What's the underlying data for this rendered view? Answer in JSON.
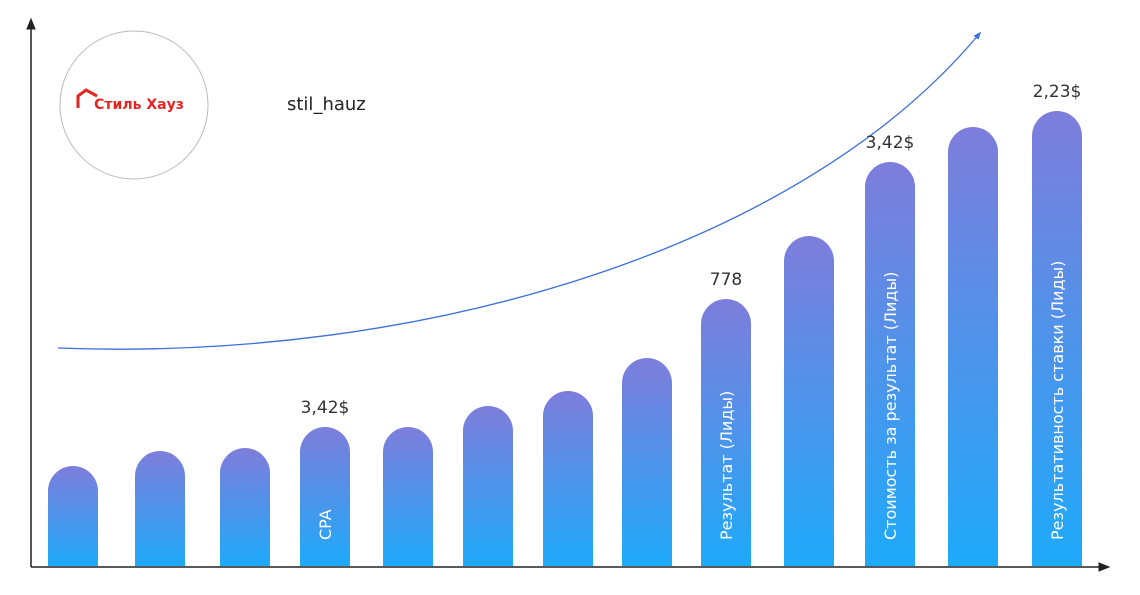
{
  "logo": {
    "text": "Стиль Хауз"
  },
  "account": "stil_hauz",
  "callouts": [
    {
      "value_text": "3,42$",
      "bar_label": "CPA"
    },
    {
      "value_text": "778",
      "bar_label": "Результат (Лиды)"
    },
    {
      "value_text": "3,42$",
      "bar_label": "Стоимость за результат (Лиды)"
    },
    {
      "value_text": "2,23$",
      "bar_label": "Результативность ставки (Лиды)"
    }
  ]
}
